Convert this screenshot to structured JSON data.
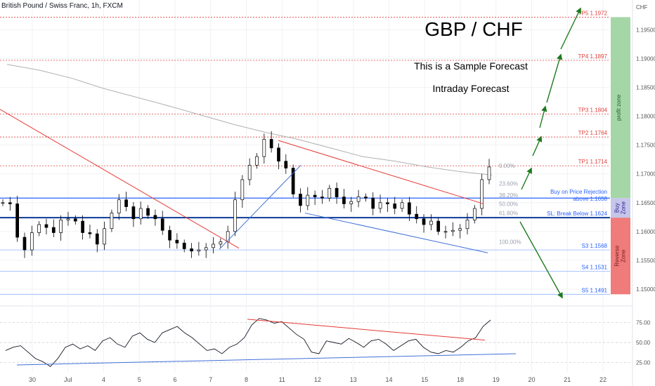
{
  "header": {
    "symbol": "British Pound / Swiss Franc, 1h, FXCM"
  },
  "overlay": {
    "title": "GBP / CHF",
    "subtitle1": "This is a Sample Forecast",
    "subtitle2": "Intraday Forecast"
  },
  "colors": {
    "tp": "#e0413c",
    "support": "#2962ff",
    "key": "#0d3b99",
    "arrow": "#1e7a1e",
    "profit_zone": "#a5d6a7",
    "buy_zone": "#c5c6ea",
    "reverse_zone": "#ef7b7b",
    "candle": "#000000",
    "ma": "#b0b0b0"
  },
  "chart_data": [
    {
      "type": "candlestick",
      "currency_label": "CHF",
      "yaxis": {
        "ticks": [
          "1.19500",
          "1.19000",
          "1.18500",
          "1.18000",
          "1.17500",
          "1.17000",
          "1.16500",
          "1.16000",
          "1.15500",
          "1.15000"
        ],
        "range": [
          1.1478,
          1.1992
        ]
      },
      "xaxis": {
        "ticks": [
          "30",
          "Jul",
          "4",
          "5",
          "6",
          "7",
          "8",
          "11",
          "12",
          "13",
          "14",
          "15",
          "18",
          "19",
          "20",
          "21",
          "22"
        ]
      },
      "price_levels": [
        {
          "label": "TP5 1.1972",
          "value": 1.1972,
          "kind": "tp"
        },
        {
          "label": "TP4 1.1897",
          "value": 1.1897,
          "kind": "tp"
        },
        {
          "label": "TP3 1.1804",
          "value": 1.1804,
          "kind": "tp"
        },
        {
          "label": "TP2 1.1764",
          "value": 1.1764,
          "kind": "tp"
        },
        {
          "label": "TP1 1.1714",
          "value": 1.1714,
          "kind": "tp"
        },
        {
          "label": "Buy on Price Rejection",
          "label2": "above 1.1658",
          "value": 1.1658,
          "kind": "buy"
        },
        {
          "label": "SL: Break Below 1.1624",
          "value": 1.1624,
          "kind": "key"
        },
        {
          "label": "S3 1.1568",
          "value": 1.1568,
          "kind": "support"
        },
        {
          "label": "S4 1.1531",
          "value": 1.1531,
          "kind": "support"
        },
        {
          "label": "S5 1.1491",
          "value": 1.1491,
          "kind": "support"
        }
      ],
      "fib_labels": [
        {
          "label": "0.00%",
          "value": 1.1714
        },
        {
          "label": "23.60%",
          "value": 1.1683
        },
        {
          "label": "38.20%",
          "value": 1.1663
        },
        {
          "label": "50.00%",
          "value": 1.1648
        },
        {
          "label": "61.80%",
          "value": 1.1632
        },
        {
          "label": "100.00%",
          "value": 1.1582
        }
      ],
      "zones": [
        {
          "label": "profit zone",
          "from": 1.1658,
          "to": 1.1972
        },
        {
          "label": "Buy Zone",
          "from": 1.1624,
          "to": 1.1658
        },
        {
          "label": "Reverse Zone",
          "from": 1.1491,
          "to": 1.1624
        }
      ],
      "close_path": [
        1.165,
        1.1648,
        1.159,
        1.1568,
        1.1598,
        1.1612,
        1.1607,
        1.1598,
        1.162,
        1.1622,
        1.1618,
        1.1598,
        1.1596,
        1.1578,
        1.1605,
        1.1632,
        1.1655,
        1.1643,
        1.1622,
        1.164,
        1.1628,
        1.1622,
        1.1602,
        1.1585,
        1.158,
        1.157,
        1.1566,
        1.1568,
        1.1572,
        1.1578,
        1.1582,
        1.16,
        1.1655,
        1.169,
        1.1715,
        1.173,
        1.176,
        1.1745,
        1.1722,
        1.171,
        1.1665,
        1.1645,
        1.1663,
        1.166,
        1.1658,
        1.1675,
        1.166,
        1.1648,
        1.1652,
        1.166,
        1.1658,
        1.164,
        1.165,
        1.1648,
        1.164,
        1.165,
        1.163,
        1.1622,
        1.1612,
        1.1618,
        1.16,
        1.16,
        1.1602,
        1.1605,
        1.162,
        1.164,
        1.169,
        1.1712
      ],
      "moving_average": [
        1.189,
        1.188,
        1.1866,
        1.1848,
        1.1833,
        1.1818,
        1.1802,
        1.1786,
        1.1772,
        1.176,
        1.1745,
        1.173,
        1.1722,
        1.1712,
        1.1704,
        1.1698
      ],
      "resistance_trendlines": 2,
      "support_trendlines": 2
    },
    {
      "type": "line",
      "indicator": "RSI",
      "yaxis": {
        "ticks": [
          "75.00",
          "50.00",
          "25.00"
        ],
        "range": [
          15,
          85
        ]
      },
      "values": [
        40,
        44,
        46,
        38,
        30,
        26,
        20,
        30,
        44,
        48,
        42,
        46,
        40,
        52,
        56,
        48,
        44,
        58,
        62,
        54,
        50,
        62,
        66,
        70,
        62,
        56,
        48,
        40,
        42,
        36,
        44,
        48,
        56,
        72,
        80,
        78,
        74,
        76,
        68,
        60,
        54,
        38,
        36,
        52,
        50,
        48,
        55,
        50,
        44,
        52,
        54,
        48,
        40,
        46,
        52,
        54,
        44,
        38,
        36,
        40,
        38,
        44,
        52,
        56,
        70,
        78
      ]
    }
  ]
}
